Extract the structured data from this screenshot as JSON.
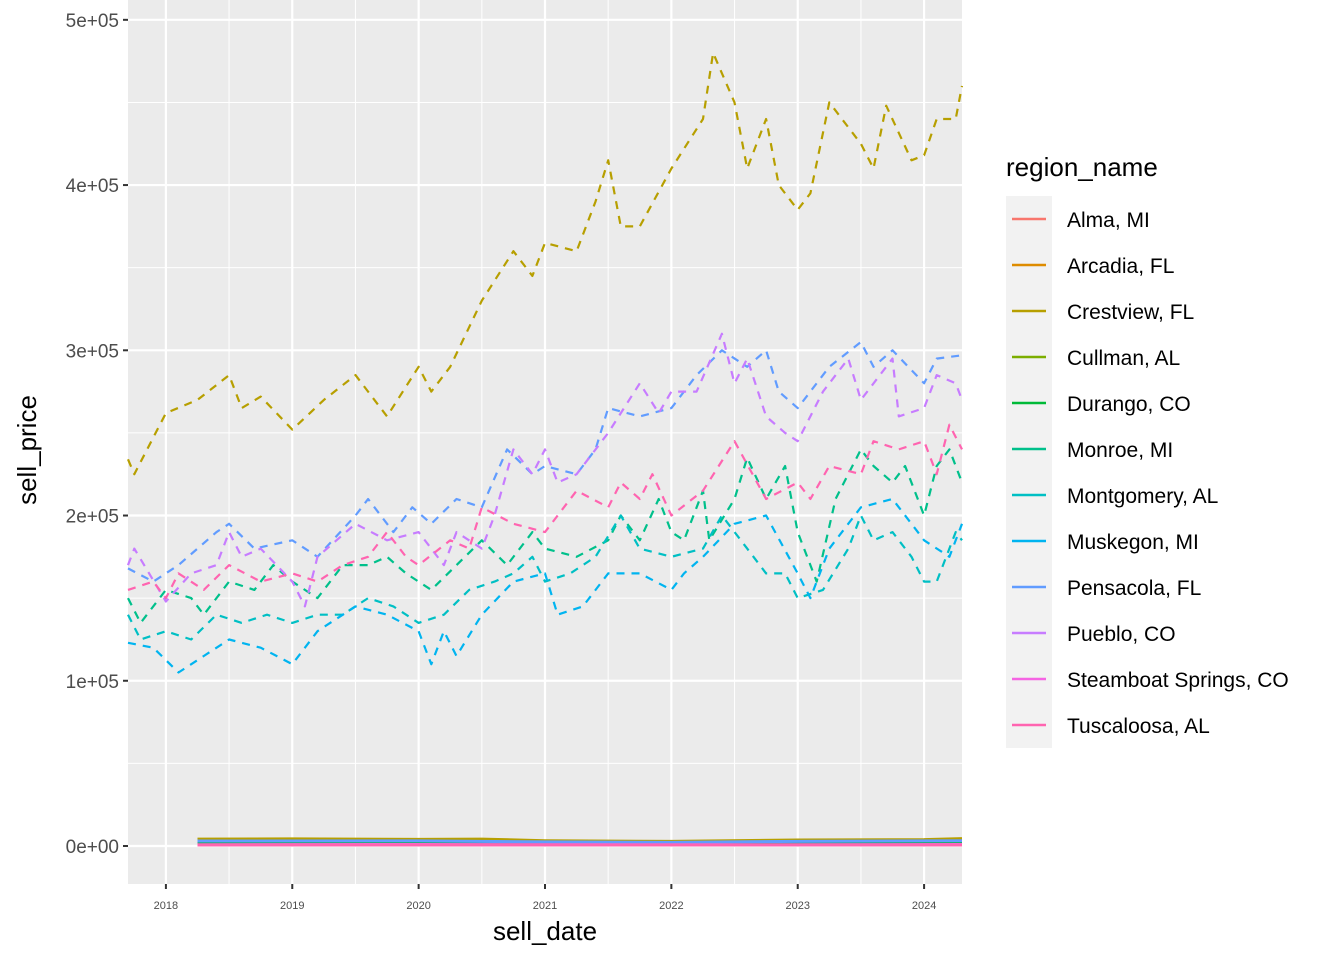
{
  "chart_data": {
    "type": "line",
    "xlabel": "sell_date",
    "ylabel": "sell_price",
    "xlim": [
      2017.7,
      2024.3
    ],
    "ylim": [
      -23000,
      512000
    ],
    "xticks": [
      2018,
      2019,
      2020,
      2021,
      2022,
      2023,
      2024
    ],
    "xtick_labels": [
      "2018",
      "2019",
      "2020",
      "2021",
      "2022",
      "2023",
      "2024"
    ],
    "yticks": [
      0,
      100000,
      200000,
      300000,
      400000,
      500000
    ],
    "ytick_labels": [
      "0e+00",
      "1e+05",
      "2e+05",
      "3e+05",
      "4e+05",
      "5e+05"
    ],
    "grid": true,
    "legend": {
      "title": "region_name",
      "placement": "right"
    },
    "series": [
      {
        "name": "Alma, MI",
        "color": "#F8766D",
        "dashed": false,
        "x": [
          2018.25,
          2020,
          2022,
          2024.3
        ],
        "y": [
          1200,
          1300,
          1000,
          1400
        ]
      },
      {
        "name": "Arcadia, FL",
        "color": "#DE8C00",
        "dashed": false,
        "x": [
          2018.25,
          2020,
          2022,
          2024.3
        ],
        "y": [
          1800,
          1900,
          1500,
          2000
        ]
      },
      {
        "name": "Crestview, FL",
        "color": "#B79F00",
        "dashed": true,
        "x": [
          2017.7,
          2017.75,
          2018,
          2018.25,
          2018.5,
          2018.6,
          2018.75,
          2019,
          2019.25,
          2019.5,
          2019.75,
          2020,
          2020.1,
          2020.25,
          2020.5,
          2020.75,
          2020.9,
          2021,
          2021.25,
          2021.4,
          2021.5,
          2021.6,
          2021.75,
          2022,
          2022.25,
          2022.33,
          2022.5,
          2022.6,
          2022.75,
          2022.85,
          2023,
          2023.1,
          2023.25,
          2023.5,
          2023.6,
          2023.7,
          2023.9,
          2024,
          2024.1,
          2024.25,
          2024.3
        ],
        "y": [
          234000,
          225000,
          262000,
          270000,
          285000,
          265000,
          272000,
          252000,
          270000,
          285000,
          260000,
          290000,
          275000,
          290000,
          330000,
          360000,
          345000,
          365000,
          360000,
          390000,
          415000,
          375000,
          375000,
          410000,
          440000,
          480000,
          450000,
          410000,
          440000,
          400000,
          385000,
          395000,
          450000,
          425000,
          410000,
          448000,
          415000,
          418000,
          440000,
          440000,
          460000
        ]
      },
      {
        "name": "Crestview, FL (count)",
        "legend": false,
        "color": "#B79F00",
        "dashed": false,
        "x": [
          2018.25,
          2019,
          2020,
          2020.5,
          2021,
          2022,
          2023,
          2024,
          2024.3
        ],
        "y": [
          4200,
          4300,
          4000,
          4200,
          3200,
          2800,
          3600,
          3900,
          4500
        ]
      },
      {
        "name": "Cullman, AL",
        "color": "#7CAE00",
        "dashed": false,
        "x": [
          2018.25,
          2020,
          2022,
          2024.3
        ],
        "y": [
          2200,
          2300,
          1800,
          2400
        ]
      },
      {
        "name": "Durango, CO",
        "color": "#00BA38",
        "dashed": false,
        "x": [
          2018.25,
          2020,
          2022,
          2024.3
        ],
        "y": [
          1500,
          1600,
          1300,
          1600
        ]
      },
      {
        "name": "Monroe, MI",
        "color": "#00C08B",
        "dashed": true,
        "x": [
          2017.7,
          2017.8,
          2018,
          2018.2,
          2018.3,
          2018.5,
          2018.7,
          2018.85,
          2019,
          2019.2,
          2019.4,
          2019.6,
          2019.75,
          2019.9,
          2020.1,
          2020.3,
          2020.5,
          2020.7,
          2020.9,
          2021,
          2021.25,
          2021.5,
          2021.6,
          2021.75,
          2021.9,
          2022,
          2022.1,
          2022.25,
          2022.3,
          2022.5,
          2022.6,
          2022.75,
          2022.9,
          2023,
          2023.15,
          2023.3,
          2023.5,
          2023.6,
          2023.75,
          2023.85,
          2024,
          2024.1,
          2024.2,
          2024.3
        ],
        "y": [
          150000,
          135000,
          155000,
          150000,
          140000,
          160000,
          155000,
          170000,
          160000,
          150000,
          170000,
          170000,
          175000,
          165000,
          155000,
          170000,
          185000,
          170000,
          190000,
          180000,
          175000,
          185000,
          200000,
          185000,
          210000,
          190000,
          185000,
          215000,
          185000,
          210000,
          235000,
          210000,
          230000,
          190000,
          160000,
          210000,
          240000,
          230000,
          220000,
          230000,
          200000,
          230000,
          240000,
          220000
        ]
      },
      {
        "name": "Montgomery, AL",
        "color": "#00BFC4",
        "dashed": true,
        "x": [
          2017.7,
          2017.8,
          2018,
          2018.2,
          2018.4,
          2018.6,
          2018.8,
          2019,
          2019.2,
          2019.4,
          2019.6,
          2019.8,
          2020,
          2020.2,
          2020.4,
          2020.6,
          2020.75,
          2020.9,
          2021,
          2021.2,
          2021.4,
          2021.6,
          2021.75,
          2022,
          2022.25,
          2022.4,
          2022.6,
          2022.75,
          2022.9,
          2023,
          2023.2,
          2023.4,
          2023.5,
          2023.6,
          2023.75,
          2023.9,
          2024,
          2024.1,
          2024.25,
          2024.3
        ],
        "y": [
          140000,
          125000,
          130000,
          125000,
          140000,
          135000,
          140000,
          135000,
          140000,
          140000,
          150000,
          145000,
          135000,
          140000,
          155000,
          160000,
          165000,
          175000,
          160000,
          165000,
          175000,
          200000,
          180000,
          175000,
          180000,
          200000,
          180000,
          165000,
          165000,
          150000,
          155000,
          180000,
          200000,
          185000,
          190000,
          175000,
          160000,
          160000,
          190000,
          185000
        ]
      },
      {
        "name": "Muskegon, MI",
        "color": "#00B4F0",
        "dashed": true,
        "x": [
          2017.7,
          2017.9,
          2018.1,
          2018.3,
          2018.5,
          2018.75,
          2019,
          2019.2,
          2019.5,
          2019.75,
          2020,
          2020.1,
          2020.2,
          2020.3,
          2020.5,
          2020.75,
          2021,
          2021.1,
          2021.3,
          2021.5,
          2021.75,
          2022,
          2022.1,
          2022.25,
          2022.5,
          2022.75,
          2023,
          2023.1,
          2023.25,
          2023.5,
          2023.75,
          2024,
          2024.2,
          2024.3
        ],
        "y": [
          123000,
          120000,
          105000,
          115000,
          125000,
          120000,
          110000,
          130000,
          145000,
          140000,
          130000,
          110000,
          130000,
          115000,
          140000,
          160000,
          165000,
          140000,
          145000,
          165000,
          165000,
          155000,
          165000,
          175000,
          195000,
          200000,
          165000,
          150000,
          180000,
          205000,
          210000,
          185000,
          175000,
          195000
        ]
      },
      {
        "name": "Pensacola, FL",
        "color": "#619CFF",
        "dashed": true,
        "x": [
          2017.7,
          2017.9,
          2018.1,
          2018.4,
          2018.5,
          2018.7,
          2019,
          2019.2,
          2019.5,
          2019.6,
          2019.8,
          2019.95,
          2020.1,
          2020.3,
          2020.5,
          2020.7,
          2020.9,
          2021,
          2021.25,
          2021.4,
          2021.5,
          2021.75,
          2022,
          2022.2,
          2022.4,
          2022.6,
          2022.75,
          2022.85,
          2023,
          2023.25,
          2023.5,
          2023.6,
          2023.75,
          2024,
          2024.1,
          2024.3
        ],
        "y": [
          168000,
          160000,
          170000,
          190000,
          195000,
          180000,
          185000,
          175000,
          200000,
          210000,
          190000,
          205000,
          195000,
          210000,
          205000,
          240000,
          225000,
          230000,
          225000,
          240000,
          265000,
          260000,
          265000,
          285000,
          300000,
          290000,
          300000,
          275000,
          265000,
          290000,
          305000,
          290000,
          300000,
          280000,
          295000,
          297000
        ]
      },
      {
        "name": "Pensacola, FL (count)",
        "legend": false,
        "color": "#619CFF",
        "dashed": false,
        "x": [
          2018.25,
          2020,
          2021,
          2022,
          2023,
          2024.3
        ],
        "y": [
          3000,
          3100,
          2500,
          2200,
          2800,
          3200
        ]
      },
      {
        "name": "Pueblo, CO",
        "color": "#C77CFF",
        "dashed": true,
        "x": [
          2017.7,
          2017.75,
          2018,
          2018.2,
          2018.4,
          2018.5,
          2018.6,
          2018.75,
          2019,
          2019.1,
          2019.2,
          2019.5,
          2019.75,
          2020,
          2020.2,
          2020.3,
          2020.5,
          2020.6,
          2020.75,
          2020.9,
          2021,
          2021.1,
          2021.25,
          2021.5,
          2021.75,
          2021.9,
          2022,
          2022.2,
          2022.4,
          2022.5,
          2022.6,
          2022.75,
          2022.9,
          2023,
          2023.2,
          2023.4,
          2023.5,
          2023.75,
          2023.8,
          2024,
          2024.1,
          2024.25,
          2024.3
        ],
        "y": [
          170000,
          180000,
          148000,
          165000,
          170000,
          190000,
          175000,
          180000,
          160000,
          145000,
          175000,
          195000,
          185000,
          190000,
          170000,
          190000,
          180000,
          200000,
          240000,
          225000,
          240000,
          220000,
          225000,
          250000,
          280000,
          262000,
          275000,
          275000,
          310000,
          280000,
          295000,
          260000,
          250000,
          245000,
          275000,
          295000,
          270000,
          295000,
          260000,
          265000,
          285000,
          280000,
          270000
        ]
      },
      {
        "name": "Steamboat Springs, CO",
        "color": "#F564E3",
        "dashed": false,
        "x": [
          2018.25,
          2020,
          2022,
          2024.3
        ],
        "y": [
          800,
          900,
          700,
          900
        ]
      },
      {
        "name": "Tuscaloosa, AL",
        "color": "#FF64B0",
        "dashed": true,
        "x": [
          2017.7,
          2017.9,
          2018,
          2018.1,
          2018.3,
          2018.5,
          2018.75,
          2019,
          2019.2,
          2019.4,
          2019.6,
          2019.75,
          2019.9,
          2020,
          2020.25,
          2020.4,
          2020.5,
          2020.75,
          2021,
          2021.25,
          2021.5,
          2021.6,
          2021.75,
          2021.85,
          2022,
          2022.25,
          2022.5,
          2022.75,
          2023,
          2023.1,
          2023.25,
          2023.5,
          2023.6,
          2023.8,
          2024,
          2024.1,
          2024.2,
          2024.3
        ],
        "y": [
          155000,
          160000,
          150000,
          165000,
          155000,
          170000,
          160000,
          165000,
          160000,
          170000,
          175000,
          190000,
          175000,
          170000,
          185000,
          180000,
          205000,
          195000,
          190000,
          215000,
          205000,
          220000,
          210000,
          225000,
          200000,
          215000,
          245000,
          210000,
          220000,
          210000,
          230000,
          225000,
          245000,
          240000,
          245000,
          225000,
          255000,
          240000
        ]
      },
      {
        "name": "Tuscaloosa, AL (count)",
        "legend": false,
        "color": "#FF64B0",
        "dashed": false,
        "x": [
          2018.25,
          2024.3
        ],
        "y": [
          600,
          600
        ]
      }
    ]
  }
}
